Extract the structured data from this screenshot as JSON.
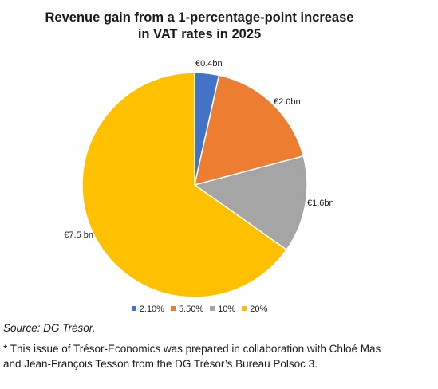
{
  "chart_data": {
    "type": "pie",
    "title_lines": [
      "Revenue gain from a 1-percentage-point increase",
      "in VAT rates in 2025"
    ],
    "categories": [
      "2.10%",
      "5.50%",
      "10%",
      "20%"
    ],
    "values": [
      0.4,
      2.0,
      1.6,
      7.5
    ],
    "unit": "€ bn",
    "data_labels": [
      "€0.4bn",
      "€2.0bn",
      "€1.6bn",
      "€7.5 bn"
    ],
    "colors": [
      "#4472c4",
      "#ed7d31",
      "#a5a5a5",
      "#ffc000"
    ],
    "legend_position": "bottom",
    "start_angle_deg": 0,
    "direction": "clockwise"
  },
  "source": "Source: DG Trésor.",
  "footnote_lines": [
    "* This issue of Trésor-Economics was prepared in collaboration with Chloé Mas",
    "and Jean-François Tesson from the DG Trésor’s Bureau Polsoc 3."
  ]
}
